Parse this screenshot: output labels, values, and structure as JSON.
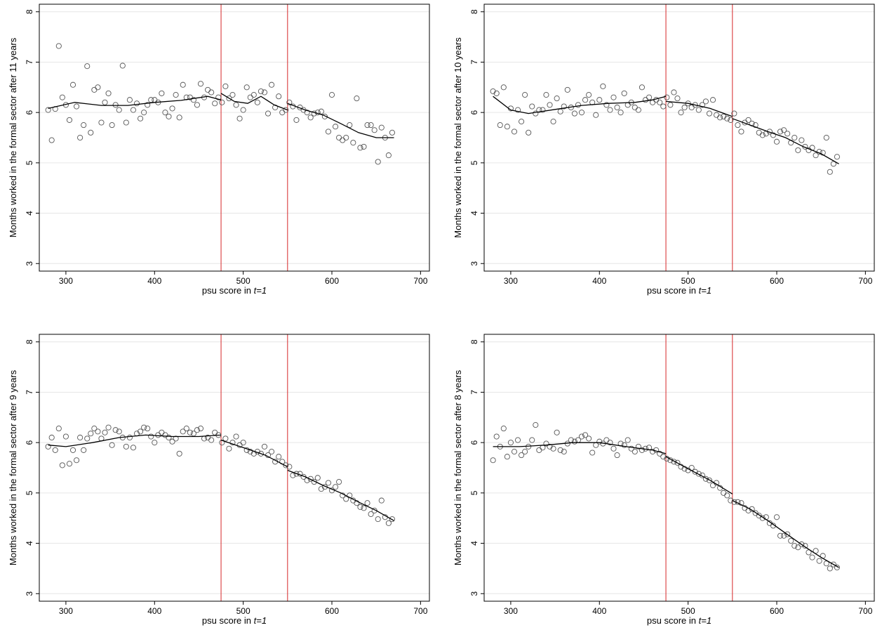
{
  "chart_data": [
    {
      "type": "scatter",
      "ylabel": "Months worked in the formal sector after 11 years",
      "xlabel_prefix": "psu score in ",
      "xlabel_italic": "t=1",
      "xlim": [
        270,
        710
      ],
      "ylim": [
        2.85,
        8.15
      ],
      "xticks": [
        300,
        400,
        500,
        600,
        700
      ],
      "yticks": [
        3,
        4,
        5,
        6,
        7,
        8
      ],
      "grid_y": true,
      "cutoffs": [
        475,
        550
      ],
      "cutoff_color": "#d62728",
      "x": [
        280,
        284,
        288,
        292,
        296,
        300,
        304,
        308,
        312,
        316,
        320,
        324,
        328,
        332,
        336,
        340,
        344,
        348,
        352,
        356,
        360,
        364,
        368,
        372,
        376,
        380,
        384,
        388,
        392,
        396,
        400,
        404,
        408,
        412,
        416,
        420,
        424,
        428,
        432,
        436,
        440,
        444,
        448,
        452,
        456,
        460,
        464,
        468,
        472,
        476,
        480,
        484,
        488,
        492,
        496,
        500,
        504,
        508,
        512,
        516,
        520,
        524,
        528,
        532,
        536,
        540,
        544,
        548,
        552,
        556,
        560,
        564,
        568,
        572,
        576,
        580,
        584,
        588,
        592,
        596,
        600,
        604,
        608,
        612,
        616,
        620,
        624,
        628,
        632,
        636,
        640,
        644,
        648,
        652,
        656,
        660,
        664,
        668
      ],
      "y": [
        6.05,
        5.45,
        6.07,
        7.32,
        6.3,
        6.15,
        5.85,
        6.55,
        6.12,
        5.5,
        5.75,
        6.92,
        5.6,
        6.45,
        6.5,
        5.8,
        6.2,
        6.38,
        5.75,
        6.15,
        6.05,
        6.93,
        5.8,
        6.25,
        6.05,
        6.18,
        5.88,
        6.0,
        6.15,
        6.25,
        6.25,
        6.2,
        6.38,
        6.0,
        5.92,
        6.08,
        6.35,
        5.9,
        6.55,
        6.3,
        6.3,
        6.25,
        6.15,
        6.57,
        6.3,
        6.45,
        6.4,
        6.18,
        6.3,
        6.2,
        6.52,
        6.28,
        6.35,
        6.15,
        5.88,
        6.05,
        6.5,
        6.3,
        6.35,
        6.2,
        6.42,
        6.4,
        5.98,
        6.55,
        6.1,
        6.32,
        6.0,
        6.05,
        6.2,
        6.12,
        5.85,
        6.1,
        6.05,
        6.0,
        5.9,
        5.98,
        6.0,
        6.02,
        5.92,
        5.62,
        6.35,
        5.72,
        5.5,
        5.45,
        5.5,
        5.75,
        5.4,
        6.28,
        5.3,
        5.32,
        5.75,
        5.75,
        5.65,
        5.02,
        5.7,
        5.5,
        5.15,
        5.6
      ],
      "fit_segments": [
        {
          "x": [
            280,
            310,
            340,
            370,
            400,
            430,
            460,
            475
          ],
          "y": [
            6.08,
            6.2,
            6.14,
            6.14,
            6.2,
            6.24,
            6.32,
            6.25
          ]
        },
        {
          "x": [
            475,
            490,
            505,
            520,
            535,
            550
          ],
          "y": [
            6.38,
            6.22,
            6.18,
            6.32,
            6.15,
            6.05
          ]
        },
        {
          "x": [
            550,
            570,
            590,
            610,
            630,
            650,
            670
          ],
          "y": [
            6.18,
            6.05,
            5.95,
            5.78,
            5.6,
            5.5,
            5.5
          ]
        }
      ]
    },
    {
      "type": "scatter",
      "ylabel": "Months worked in the formal sector after 10 years",
      "xlabel_prefix": "psu score in ",
      "xlabel_italic": "t=1",
      "xlim": [
        270,
        710
      ],
      "ylim": [
        2.85,
        8.15
      ],
      "xticks": [
        300,
        400,
        500,
        600,
        700
      ],
      "yticks": [
        3,
        4,
        5,
        6,
        7,
        8
      ],
      "grid_y": true,
      "cutoffs": [
        475,
        550
      ],
      "cutoff_color": "#d62728",
      "x": [
        280,
        284,
        288,
        292,
        296,
        300,
        304,
        308,
        312,
        316,
        320,
        324,
        328,
        332,
        336,
        340,
        344,
        348,
        352,
        356,
        360,
        364,
        368,
        372,
        376,
        380,
        384,
        388,
        392,
        396,
        400,
        404,
        408,
        412,
        416,
        420,
        424,
        428,
        432,
        436,
        440,
        444,
        448,
        452,
        456,
        460,
        464,
        468,
        472,
        476,
        480,
        484,
        488,
        492,
        496,
        500,
        504,
        508,
        512,
        516,
        520,
        524,
        528,
        532,
        536,
        540,
        544,
        548,
        552,
        556,
        560,
        564,
        568,
        572,
        576,
        580,
        584,
        588,
        592,
        596,
        600,
        604,
        608,
        612,
        616,
        620,
        624,
        628,
        632,
        636,
        640,
        644,
        648,
        652,
        656,
        660,
        664,
        668
      ],
      "y": [
        6.42,
        6.38,
        5.75,
        6.5,
        5.72,
        6.08,
        5.62,
        6.05,
        5.82,
        6.35,
        5.6,
        6.12,
        5.98,
        6.05,
        6.05,
        6.35,
        6.15,
        5.82,
        6.28,
        6.02,
        6.12,
        6.45,
        6.1,
        5.98,
        6.15,
        6.0,
        6.25,
        6.35,
        6.2,
        5.95,
        6.25,
        6.52,
        6.15,
        6.05,
        6.3,
        6.1,
        6.0,
        6.38,
        6.15,
        6.2,
        6.1,
        6.05,
        6.5,
        6.25,
        6.3,
        6.2,
        6.25,
        6.2,
        6.12,
        6.3,
        6.15,
        6.4,
        6.28,
        6.0,
        6.1,
        6.18,
        6.1,
        6.15,
        6.05,
        6.15,
        6.22,
        5.98,
        6.25,
        5.95,
        5.9,
        5.92,
        5.88,
        5.85,
        5.98,
        5.75,
        5.62,
        5.8,
        5.85,
        5.78,
        5.75,
        5.6,
        5.55,
        5.58,
        5.62,
        5.55,
        5.42,
        5.62,
        5.65,
        5.58,
        5.4,
        5.5,
        5.25,
        5.45,
        5.32,
        5.25,
        5.3,
        5.15,
        5.22,
        5.2,
        5.5,
        4.82,
        4.98,
        5.12
      ],
      "fit_segments": [
        {
          "x": [
            280,
            300,
            320,
            350,
            380,
            410,
            440,
            460,
            475
          ],
          "y": [
            6.32,
            6.05,
            5.98,
            6.06,
            6.14,
            6.18,
            6.2,
            6.25,
            6.32
          ]
        },
        {
          "x": [
            475,
            500,
            525,
            550
          ],
          "y": [
            6.22,
            6.18,
            6.08,
            5.92
          ]
        },
        {
          "x": [
            550,
            570,
            590,
            610,
            630,
            650,
            670
          ],
          "y": [
            5.88,
            5.75,
            5.62,
            5.5,
            5.32,
            5.18,
            4.98
          ]
        }
      ]
    },
    {
      "type": "scatter",
      "ylabel": "Months worked in the formal sector after 9 years",
      "xlabel_prefix": "psu score in ",
      "xlabel_italic": "t=1",
      "xlim": [
        270,
        710
      ],
      "ylim": [
        2.85,
        8.15
      ],
      "xticks": [
        300,
        400,
        500,
        600,
        700
      ],
      "yticks": [
        3,
        4,
        5,
        6,
        7,
        8
      ],
      "grid_y": true,
      "cutoffs": [
        475,
        550
      ],
      "cutoff_color": "#d62728",
      "x": [
        280,
        284,
        288,
        292,
        296,
        300,
        304,
        308,
        312,
        316,
        320,
        324,
        328,
        332,
        336,
        340,
        344,
        348,
        352,
        356,
        360,
        364,
        368,
        372,
        376,
        380,
        384,
        388,
        392,
        396,
        400,
        404,
        408,
        412,
        416,
        420,
        424,
        428,
        432,
        436,
        440,
        444,
        448,
        452,
        456,
        460,
        464,
        468,
        472,
        476,
        480,
        484,
        488,
        492,
        496,
        500,
        504,
        508,
        512,
        516,
        520,
        524,
        528,
        532,
        536,
        540,
        544,
        548,
        552,
        556,
        560,
        564,
        568,
        572,
        576,
        580,
        584,
        588,
        592,
        596,
        600,
        604,
        608,
        612,
        616,
        620,
        624,
        628,
        632,
        636,
        640,
        644,
        648,
        652,
        656,
        660,
        664,
        668
      ],
      "y": [
        5.92,
        6.1,
        5.85,
        6.28,
        5.55,
        6.12,
        5.58,
        5.85,
        5.65,
        6.1,
        5.85,
        6.08,
        6.18,
        6.28,
        6.22,
        6.08,
        6.2,
        6.3,
        5.95,
        6.25,
        6.22,
        6.1,
        5.92,
        6.1,
        5.9,
        6.18,
        6.22,
        6.3,
        6.28,
        6.12,
        6.0,
        6.15,
        6.2,
        6.15,
        6.1,
        6.02,
        6.08,
        5.78,
        6.22,
        6.28,
        6.2,
        6.18,
        6.25,
        6.28,
        6.08,
        6.1,
        6.05,
        6.2,
        6.15,
        6.0,
        6.08,
        5.88,
        6.0,
        6.12,
        5.95,
        6.0,
        5.85,
        5.82,
        5.78,
        5.82,
        5.78,
        5.92,
        5.75,
        5.82,
        5.62,
        5.72,
        5.62,
        5.55,
        5.52,
        5.35,
        5.38,
        5.38,
        5.32,
        5.25,
        5.28,
        5.22,
        5.3,
        5.08,
        5.12,
        5.2,
        5.05,
        5.12,
        5.22,
        4.95,
        4.88,
        4.95,
        4.85,
        4.8,
        4.72,
        4.7,
        4.8,
        4.58,
        4.65,
        4.48,
        4.85,
        4.52,
        4.4,
        4.48
      ],
      "fit_segments": [
        {
          "x": [
            280,
            300,
            330,
            360,
            390,
            420,
            450,
            475
          ],
          "y": [
            5.95,
            5.92,
            6.0,
            6.1,
            6.15,
            6.12,
            6.12,
            6.15
          ]
        },
        {
          "x": [
            475,
            500,
            525,
            550
          ],
          "y": [
            6.05,
            5.9,
            5.75,
            5.52
          ]
        },
        {
          "x": [
            550,
            570,
            590,
            610,
            630,
            650,
            670
          ],
          "y": [
            5.45,
            5.32,
            5.15,
            5.0,
            4.82,
            4.65,
            4.45
          ]
        }
      ]
    },
    {
      "type": "scatter",
      "ylabel": "Months worked in the formal sector after 8 years",
      "xlabel_prefix": "psu score in ",
      "xlabel_italic": "t=1",
      "xlim": [
        270,
        710
      ],
      "ylim": [
        2.85,
        8.15
      ],
      "xticks": [
        300,
        400,
        500,
        600,
        700
      ],
      "yticks": [
        3,
        4,
        5,
        6,
        7,
        8
      ],
      "grid_y": true,
      "cutoffs": [
        475,
        550
      ],
      "cutoff_color": "#d62728",
      "x": [
        280,
        284,
        288,
        292,
        296,
        300,
        304,
        308,
        312,
        316,
        320,
        324,
        328,
        332,
        336,
        340,
        344,
        348,
        352,
        356,
        360,
        364,
        368,
        372,
        376,
        380,
        384,
        388,
        392,
        396,
        400,
        404,
        408,
        412,
        416,
        420,
        424,
        428,
        432,
        436,
        440,
        444,
        448,
        452,
        456,
        460,
        464,
        468,
        472,
        476,
        480,
        484,
        488,
        492,
        496,
        500,
        504,
        508,
        512,
        516,
        520,
        524,
        528,
        532,
        536,
        540,
        544,
        548,
        552,
        556,
        560,
        564,
        568,
        572,
        576,
        580,
        584,
        588,
        592,
        596,
        600,
        604,
        608,
        612,
        616,
        620,
        624,
        628,
        632,
        636,
        640,
        644,
        648,
        652,
        656,
        660,
        664,
        668
      ],
      "y": [
        5.65,
        6.12,
        5.92,
        6.28,
        5.72,
        6.0,
        5.82,
        6.05,
        5.75,
        5.82,
        5.92,
        6.05,
        6.35,
        5.85,
        5.9,
        5.98,
        5.92,
        5.88,
        6.2,
        5.85,
        5.82,
        5.98,
        6.05,
        6.02,
        6.05,
        6.12,
        6.15,
        6.08,
        5.8,
        5.95,
        6.02,
        5.98,
        6.05,
        6.0,
        5.88,
        5.75,
        5.98,
        5.95,
        6.05,
        5.88,
        5.82,
        5.92,
        5.85,
        5.88,
        5.9,
        5.82,
        5.85,
        5.78,
        5.72,
        5.68,
        5.65,
        5.62,
        5.6,
        5.52,
        5.48,
        5.45,
        5.5,
        5.42,
        5.38,
        5.35,
        5.28,
        5.25,
        5.15,
        5.2,
        5.1,
        5.0,
        4.95,
        4.85,
        4.82,
        4.82,
        4.8,
        4.7,
        4.65,
        4.68,
        4.6,
        4.55,
        4.5,
        4.52,
        4.4,
        4.35,
        4.52,
        4.15,
        4.15,
        4.18,
        4.05,
        3.95,
        3.92,
        3.98,
        3.95,
        3.82,
        3.72,
        3.85,
        3.65,
        3.75,
        3.6,
        3.5,
        3.58,
        3.52
      ],
      "fit_segments": [
        {
          "x": [
            280,
            310,
            340,
            370,
            400,
            430,
            460,
            475
          ],
          "y": [
            5.92,
            5.92,
            5.95,
            6.0,
            6.0,
            5.92,
            5.85,
            5.78
          ]
        },
        {
          "x": [
            475,
            500,
            525,
            550
          ],
          "y": [
            5.72,
            5.48,
            5.25,
            4.98
          ]
        },
        {
          "x": [
            550,
            570,
            590,
            610,
            630,
            650,
            670
          ],
          "y": [
            4.85,
            4.68,
            4.45,
            4.2,
            3.95,
            3.72,
            3.52
          ]
        }
      ]
    }
  ]
}
